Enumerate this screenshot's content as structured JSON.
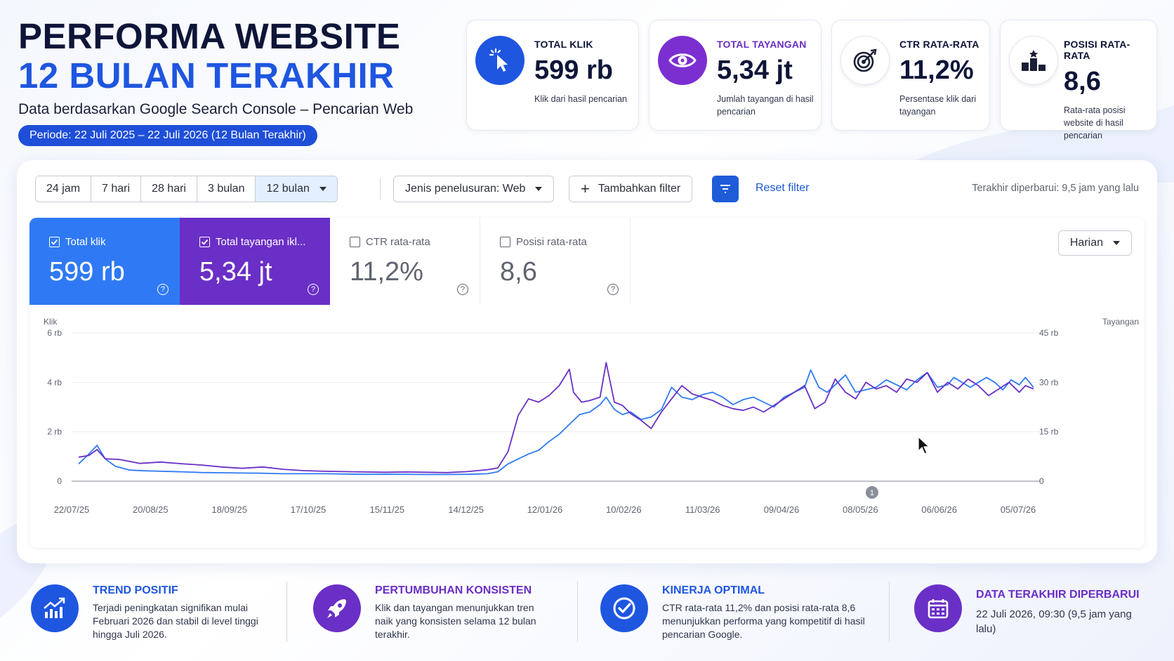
{
  "header": {
    "title_line1": "PERFORMA WEBSITE",
    "title_line2": "12 BULAN TERAKHIR",
    "subtitle": "Data berdasarkan Google Search Console – Pencarian Web",
    "period": "Periode: 22 Juli 2025 – 22 Juli 2026 (12 Bulan Terakhir)"
  },
  "kpis": [
    {
      "label": "TOTAL KLIK",
      "value": "599 rb",
      "desc": "Klik dari hasil pencarian",
      "color": "#1f56e0",
      "label_color": "#0e1538",
      "icon": "cursor-click-icon"
    },
    {
      "label": "TOTAL TAYANGAN",
      "value": "5,34 jt",
      "desc": "Jumlah tayangan di hasil pencarian",
      "color": "#7b2fd0",
      "label_color": "#6a2fc6",
      "icon": "eye-icon"
    },
    {
      "label": "CTR RATA-RATA",
      "value": "11,2%",
      "desc": "Persentase klik dari tayangan",
      "color": "#ffffff",
      "label_color": "#0e1538",
      "icon": "target-icon"
    },
    {
      "label": "POSISI RATA-RATA",
      "value": "8,6",
      "desc": "Rata-rata posisi website di hasil pencarian",
      "color": "#ffffff",
      "label_color": "#0e1538",
      "icon": "podium-icon"
    }
  ],
  "toolbar": {
    "ranges": [
      "24 jam",
      "7 hari",
      "28 hari",
      "3 bulan",
      "12 bulan"
    ],
    "active_range": "12 bulan",
    "search_type": "Jenis penelusuran: Web",
    "add_filter": "Tambahkan filter",
    "reset_filter": "Reset filter",
    "last_updated": "Terakhir diperbarui: 9,5 jam yang lalu"
  },
  "metrics": [
    {
      "label": "Total klik",
      "value": "599 rb",
      "checked": true
    },
    {
      "label": "Total tayangan ikl...",
      "value": "5,34 jt",
      "checked": true
    },
    {
      "label": "CTR rata-rata",
      "value": "11,2%",
      "checked": false
    },
    {
      "label": "Posisi rata-rata",
      "value": "8,6",
      "checked": false
    }
  ],
  "granularity": "Harian",
  "chart_data": {
    "type": "line",
    "left_axis_label": "Klik",
    "right_axis_label": "Tayangan",
    "left_ticks": [
      "0",
      "2 rb",
      "4 rb",
      "6 rb"
    ],
    "right_ticks": [
      "0",
      "15 rb",
      "30 rb",
      "45 rb"
    ],
    "ylim_left": [
      0,
      6000
    ],
    "ylim_right": [
      0,
      45000
    ],
    "x_tick_labels": [
      "22/07/25",
      "20/08/25",
      "18/09/25",
      "17/10/25",
      "15/11/25",
      "14/12/25",
      "12/01/26",
      "10/02/26",
      "11/03/26",
      "09/04/26",
      "08/05/26",
      "06/06/26",
      "05/07/26"
    ],
    "annotation_marker": "1",
    "series": [
      {
        "name": "Klik",
        "axis": "left",
        "color": "#2f7af4",
        "points": [
          [
            0,
            700
          ],
          [
            5,
            1100
          ],
          [
            9,
            1450
          ],
          [
            13,
            900
          ],
          [
            18,
            600
          ],
          [
            25,
            450
          ],
          [
            32,
            420
          ],
          [
            40,
            400
          ],
          [
            50,
            380
          ],
          [
            60,
            350
          ],
          [
            70,
            340
          ],
          [
            80,
            330
          ],
          [
            90,
            320
          ],
          [
            100,
            300
          ],
          [
            110,
            300
          ],
          [
            120,
            300
          ],
          [
            130,
            290
          ],
          [
            140,
            280
          ],
          [
            150,
            280
          ],
          [
            160,
            280
          ],
          [
            170,
            270
          ],
          [
            180,
            270
          ],
          [
            190,
            280
          ],
          [
            200,
            300
          ],
          [
            205,
            380
          ],
          [
            210,
            700
          ],
          [
            215,
            900
          ],
          [
            220,
            1100
          ],
          [
            225,
            1250
          ],
          [
            230,
            1600
          ],
          [
            235,
            1900
          ],
          [
            240,
            2300
          ],
          [
            245,
            2700
          ],
          [
            250,
            2800
          ],
          [
            255,
            3100
          ],
          [
            258,
            3400
          ],
          [
            262,
            2900
          ],
          [
            266,
            2700
          ],
          [
            270,
            2800
          ],
          [
            275,
            2500
          ],
          [
            280,
            2600
          ],
          [
            285,
            2900
          ],
          [
            290,
            3800
          ],
          [
            295,
            3400
          ],
          [
            300,
            3300
          ],
          [
            305,
            3500
          ],
          [
            310,
            3600
          ],
          [
            315,
            3400
          ],
          [
            320,
            3100
          ],
          [
            325,
            3300
          ],
          [
            330,
            3400
          ],
          [
            335,
            3200
          ],
          [
            340,
            3000
          ],
          [
            345,
            3400
          ],
          [
            350,
            3600
          ],
          [
            355,
            3800
          ],
          [
            358,
            4500
          ],
          [
            362,
            3800
          ],
          [
            366,
            3600
          ],
          [
            370,
            3900
          ],
          [
            375,
            4300
          ],
          [
            380,
            3600
          ],
          [
            385,
            3700
          ],
          [
            390,
            3800
          ],
          [
            395,
            4100
          ],
          [
            400,
            3900
          ],
          [
            405,
            3700
          ],
          [
            410,
            4100
          ],
          [
            415,
            4400
          ],
          [
            420,
            3800
          ],
          [
            425,
            3900
          ],
          [
            428,
            4200
          ],
          [
            432,
            4000
          ],
          [
            436,
            3800
          ],
          [
            440,
            4000
          ],
          [
            444,
            4200
          ],
          [
            448,
            4000
          ],
          [
            452,
            3700
          ],
          [
            456,
            4100
          ],
          [
            460,
            3900
          ],
          [
            463,
            4200
          ],
          [
            467,
            3800
          ]
        ]
      },
      {
        "name": "Tayangan",
        "axis": "right",
        "color": "#6a2fc6",
        "points": [
          [
            0,
            7300
          ],
          [
            5,
            7800
          ],
          [
            9,
            9600
          ],
          [
            13,
            6800
          ],
          [
            20,
            6600
          ],
          [
            30,
            5400
          ],
          [
            40,
            5800
          ],
          [
            50,
            5300
          ],
          [
            60,
            4900
          ],
          [
            70,
            4300
          ],
          [
            80,
            3900
          ],
          [
            90,
            4300
          ],
          [
            100,
            3600
          ],
          [
            110,
            3200
          ],
          [
            120,
            3000
          ],
          [
            130,
            2900
          ],
          [
            140,
            2800
          ],
          [
            150,
            2700
          ],
          [
            160,
            2800
          ],
          [
            170,
            2700
          ],
          [
            180,
            2600
          ],
          [
            190,
            2900
          ],
          [
            200,
            3500
          ],
          [
            205,
            4000
          ],
          [
            210,
            9000
          ],
          [
            215,
            20000
          ],
          [
            220,
            25000
          ],
          [
            225,
            24000
          ],
          [
            230,
            26000
          ],
          [
            235,
            29000
          ],
          [
            240,
            34000
          ],
          [
            242,
            27000
          ],
          [
            246,
            24000
          ],
          [
            250,
            24500
          ],
          [
            255,
            25500
          ],
          [
            258,
            36000
          ],
          [
            262,
            24000
          ],
          [
            266,
            23000
          ],
          [
            270,
            20500
          ],
          [
            275,
            18500
          ],
          [
            280,
            16000
          ],
          [
            285,
            21000
          ],
          [
            290,
            25000
          ],
          [
            295,
            29000
          ],
          [
            300,
            26500
          ],
          [
            305,
            25500
          ],
          [
            310,
            24500
          ],
          [
            315,
            23000
          ],
          [
            320,
            22000
          ],
          [
            325,
            21500
          ],
          [
            330,
            22500
          ],
          [
            335,
            21000
          ],
          [
            340,
            23000
          ],
          [
            345,
            25000
          ],
          [
            350,
            27000
          ],
          [
            355,
            29000
          ],
          [
            360,
            22000
          ],
          [
            365,
            24000
          ],
          [
            370,
            31000
          ],
          [
            375,
            27000
          ],
          [
            380,
            25000
          ],
          [
            385,
            30000
          ],
          [
            390,
            28000
          ],
          [
            395,
            29000
          ],
          [
            400,
            27000
          ],
          [
            405,
            31000
          ],
          [
            410,
            30000
          ],
          [
            415,
            33000
          ],
          [
            420,
            27000
          ],
          [
            425,
            30000
          ],
          [
            430,
            28000
          ],
          [
            435,
            31000
          ],
          [
            440,
            29000
          ],
          [
            445,
            26000
          ],
          [
            450,
            28000
          ],
          [
            455,
            30000
          ],
          [
            460,
            27000
          ],
          [
            463,
            29000
          ],
          [
            467,
            28000
          ]
        ]
      }
    ]
  },
  "insights": [
    {
      "title": "TREND POSITIF",
      "desc": "Terjadi peningkatan signifikan mulai Februari 2026 dan stabil di level tinggi hingga Juli 2026.",
      "icon": "trend-up-icon",
      "color": "#1f56e0"
    },
    {
      "title": "PERTUMBUHAN KONSISTEN",
      "desc": "Klik dan tayangan menunjukkan tren naik yang konsisten selama 12 bulan terakhir.",
      "icon": "rocket-icon",
      "color": "#6a2fc6"
    },
    {
      "title": "KINERJA OPTIMAL",
      "desc": "CTR rata-rata 11,2% dan posisi rata-rata 8,6 menunjukkan performa yang kompetitif di hasil pencarian Google.",
      "icon": "check-circle-icon",
      "color": "#1f56e0"
    },
    {
      "title": "DATA TERAKHIR DIPERBARUI",
      "desc": "22 Juli 2026, 09:30 (9,5 jam yang lalu)",
      "icon": "calendar-icon",
      "color": "#6a2fc6"
    }
  ]
}
